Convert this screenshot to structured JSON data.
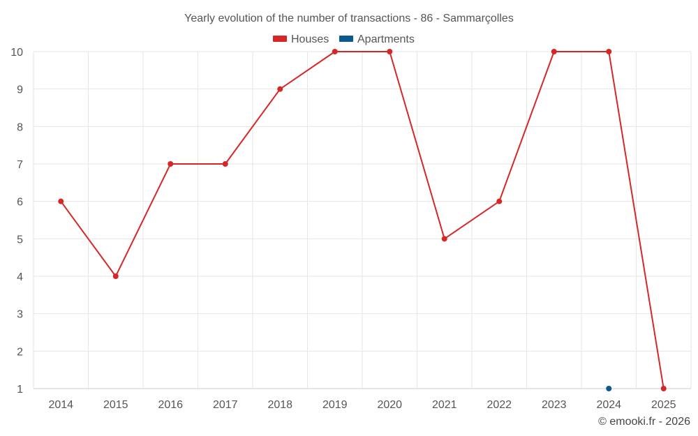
{
  "chart_data": {
    "type": "line",
    "title": "Yearly evolution of the number of transactions - 86 - Sammarçolles",
    "categories": [
      "2014",
      "2015",
      "2016",
      "2017",
      "2018",
      "2019",
      "2020",
      "2021",
      "2022",
      "2023",
      "2024",
      "2025"
    ],
    "series": [
      {
        "name": "Houses",
        "color": "#d62728",
        "values": [
          6,
          4,
          7,
          7,
          9,
          10,
          10,
          5,
          6,
          10,
          10,
          1
        ]
      },
      {
        "name": "Apartments",
        "color": "#0a5a8c",
        "values": [
          null,
          null,
          null,
          null,
          null,
          null,
          null,
          null,
          null,
          null,
          1,
          null
        ]
      }
    ],
    "ylim": [
      1,
      10
    ],
    "yticks": [
      "1",
      "2",
      "3",
      "4",
      "5",
      "6",
      "7",
      "8",
      "9",
      "10"
    ],
    "xlabel": "",
    "ylabel": "",
    "grid": true,
    "legend": "top-center"
  },
  "credit": "© emooki.fr - 2026"
}
